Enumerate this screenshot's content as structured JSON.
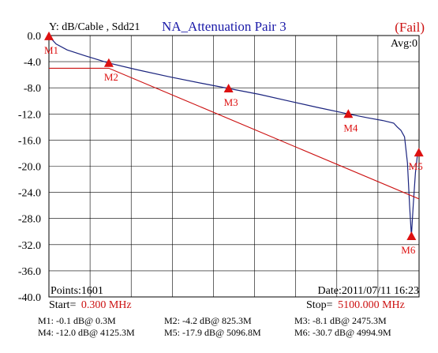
{
  "header": {
    "ylabel": "Y: dB/Cable , Sdd21",
    "title": "NA_Attenuation Pair 3",
    "status": "(Fail)",
    "avg": "Avg:0"
  },
  "footer": {
    "points": "Points:1601",
    "date": "Date:2011/07/11 16:23",
    "start_label": "Start=",
    "start_value": "0.300 MHz",
    "stop_label": "Stop=",
    "stop_value": "5100.000 MHz"
  },
  "marker_readouts": [
    "M1: -0.1 dB@ 0.3M",
    "M2: -4.2 dB@ 825.3M",
    "M3: -8.1 dB@ 2475.3M",
    "M4: -12.0 dB@ 4125.3M",
    "M5: -17.9 dB@ 5096.8M",
    "M6: -30.7 dB@ 4994.9M"
  ],
  "colors": {
    "measured": "#1a237e",
    "limit": "#cc1111",
    "marker": "#dd1111",
    "status": "#cc1111",
    "title": "#1a1aa8",
    "start_stop_value": "#cc1111",
    "grid": "#000000"
  },
  "chart_data": {
    "type": "line",
    "title": "NA_Attenuation Pair 3",
    "xlabel": "",
    "ylabel": "Y: dB/Cable , Sdd21",
    "xlim": [
      0.3,
      5100.0
    ],
    "ylim": [
      -40.0,
      0.0
    ],
    "x_unit": "MHz",
    "grid": true,
    "y_ticks": [
      "0.0",
      "-4.0",
      "-8.0",
      "-12.0",
      "-16.0",
      "-20.0",
      "-24.0",
      "-28.0",
      "-32.0",
      "-36.0",
      "-40.0"
    ],
    "series": [
      {
        "role": "measured",
        "x": [
          0.3,
          100,
          250,
          500,
          825.3,
          1200,
          1650,
          2100,
          2475.3,
          2900,
          3300,
          3700,
          4125.3,
          4400,
          4600,
          4750,
          4800,
          4850,
          4900,
          4940,
          4970,
          4994.9,
          5020,
          5050,
          5075,
          5096.8
        ],
        "y": [
          -0.1,
          -1.3,
          -2.2,
          -3.1,
          -4.2,
          -5.2,
          -6.3,
          -7.3,
          -8.1,
          -9.0,
          -10.0,
          -11.0,
          -12.0,
          -12.6,
          -13.0,
          -13.4,
          -14.0,
          -14.5,
          -15.5,
          -19.5,
          -26.0,
          -30.7,
          -26.0,
          -21.0,
          -18.5,
          -17.9
        ]
      },
      {
        "role": "limit",
        "x": [
          0.3,
          825.3,
          5100.0
        ],
        "y": [
          -5.0,
          -5.0,
          -25.0
        ]
      }
    ],
    "markers": [
      {
        "label": "M1",
        "x": 0.3,
        "y": -0.1
      },
      {
        "label": "M2",
        "x": 825.3,
        "y": -4.2
      },
      {
        "label": "M3",
        "x": 2475.3,
        "y": -8.1
      },
      {
        "label": "M4",
        "x": 4125.3,
        "y": -12.0
      },
      {
        "label": "M5",
        "x": 5096.8,
        "y": -17.9
      },
      {
        "label": "M6",
        "x": 4994.9,
        "y": -30.7
      }
    ]
  }
}
